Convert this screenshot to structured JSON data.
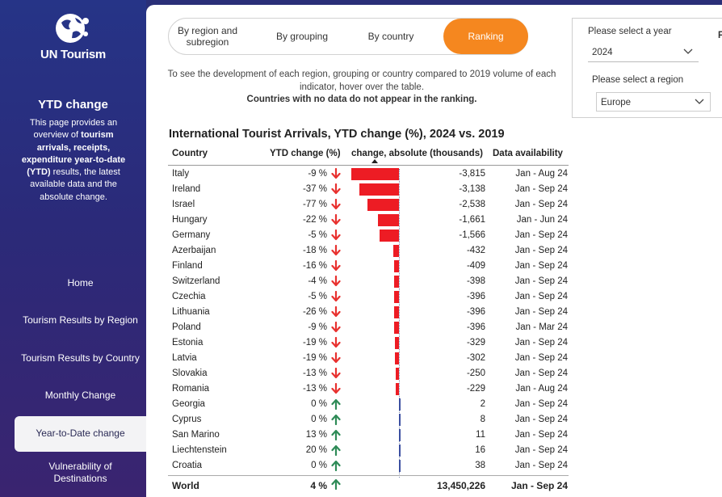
{
  "sidebar": {
    "brand": "UN Tourism",
    "title": "YTD change",
    "desc_parts": [
      {
        "t": "This page provides an overview of ",
        "b": false
      },
      {
        "t": "tourism arrivals, receipts, expenditure year-to-date (YTD)",
        "b": true
      },
      {
        "t": " results, the latest available data and the absolute change.",
        "b": false
      }
    ],
    "nav": [
      {
        "label": "Home",
        "active": false
      },
      {
        "label": "Tourism Results by Region",
        "active": false
      },
      {
        "label": "Tourism Results by Country",
        "active": false
      },
      {
        "label": "Monthly Change",
        "active": false
      },
      {
        "label": "Year-to-Date change",
        "active": true
      },
      {
        "label": "Vulnerability of Destinations",
        "active": false
      }
    ]
  },
  "tabs": [
    {
      "label": "By region and subregion",
      "active": false
    },
    {
      "label": "By grouping",
      "active": false
    },
    {
      "label": "By country",
      "active": false
    },
    {
      "label": "Ranking",
      "active": true
    }
  ],
  "instructions": {
    "line": "To see the development of each region, grouping or country compared to 2019 volume of each indicator, hover over the table.",
    "strong": "Countries with no data do not appear in the ranking."
  },
  "filters": {
    "year_label": "Please select a year",
    "year_value": "2024",
    "region_label": "Please select a region",
    "region_value": "Europe",
    "cut_label": "F"
  },
  "table": {
    "title": "International Tourist Arrivals, YTD change (%), 2024 vs. 2019",
    "headers": {
      "country": "Country",
      "ytd": "YTD change (%)",
      "abs": "change, absolute (thousands)",
      "avail": "Data availability"
    },
    "bar_scale_max": 3815,
    "rows": [
      {
        "country": "Italy",
        "ytd": "-9 %",
        "dir": "down",
        "abs_value": -3815,
        "abs": "-3,815",
        "avail": "Jan - Aug 24"
      },
      {
        "country": "Ireland",
        "ytd": "-37 %",
        "dir": "down",
        "abs_value": -3138,
        "abs": "-3,138",
        "avail": "Jan - Sep 24"
      },
      {
        "country": "Israel",
        "ytd": "-77 %",
        "dir": "down",
        "abs_value": -2538,
        "abs": "-2,538",
        "avail": "Jan - Sep 24"
      },
      {
        "country": "Hungary",
        "ytd": "-22 %",
        "dir": "down",
        "abs_value": -1661,
        "abs": "-1,661",
        "avail": "Jan - Jun 24"
      },
      {
        "country": "Germany",
        "ytd": "-5 %",
        "dir": "down",
        "abs_value": -1566,
        "abs": "-1,566",
        "avail": "Jan - Sep 24"
      },
      {
        "country": "Azerbaijan",
        "ytd": "-18 %",
        "dir": "down",
        "abs_value": -432,
        "abs": "-432",
        "avail": "Jan - Sep 24"
      },
      {
        "country": "Finland",
        "ytd": "-16 %",
        "dir": "down",
        "abs_value": -409,
        "abs": "-409",
        "avail": "Jan - Sep 24"
      },
      {
        "country": "Switzerland",
        "ytd": "-4 %",
        "dir": "down",
        "abs_value": -398,
        "abs": "-398",
        "avail": "Jan - Sep 24"
      },
      {
        "country": "Czechia",
        "ytd": "-5 %",
        "dir": "down",
        "abs_value": -396,
        "abs": "-396",
        "avail": "Jan - Sep 24"
      },
      {
        "country": "Lithuania",
        "ytd": "-26 %",
        "dir": "down",
        "abs_value": -396,
        "abs": "-396",
        "avail": "Jan - Sep 24"
      },
      {
        "country": "Poland",
        "ytd": "-9 %",
        "dir": "down",
        "abs_value": -396,
        "abs": "-396",
        "avail": "Jan - Mar 24"
      },
      {
        "country": "Estonia",
        "ytd": "-19 %",
        "dir": "down",
        "abs_value": -329,
        "abs": "-329",
        "avail": "Jan - Sep 24"
      },
      {
        "country": "Latvia",
        "ytd": "-19 %",
        "dir": "down",
        "abs_value": -302,
        "abs": "-302",
        "avail": "Jan - Sep 24"
      },
      {
        "country": "Slovakia",
        "ytd": "-13 %",
        "dir": "down",
        "abs_value": -250,
        "abs": "-250",
        "avail": "Jan - Sep 24"
      },
      {
        "country": "Romania",
        "ytd": "-13 %",
        "dir": "down",
        "abs_value": -229,
        "abs": "-229",
        "avail": "Jan - Aug 24"
      },
      {
        "country": "Georgia",
        "ytd": "0 %",
        "dir": "up",
        "abs_value": 2,
        "abs": "2",
        "avail": "Jan - Sep 24"
      },
      {
        "country": "Cyprus",
        "ytd": "0 %",
        "dir": "up",
        "abs_value": 8,
        "abs": "8",
        "avail": "Jan - Sep 24"
      },
      {
        "country": "San Marino",
        "ytd": "13 %",
        "dir": "up",
        "abs_value": 11,
        "abs": "11",
        "avail": "Jan - Sep 24"
      },
      {
        "country": "Liechtenstein",
        "ytd": "20 %",
        "dir": "up",
        "abs_value": 16,
        "abs": "16",
        "avail": "Jan - Sep 24"
      },
      {
        "country": "Croatia",
        "ytd": "0 %",
        "dir": "up",
        "abs_value": 38,
        "abs": "38",
        "avail": "Jan - Sep 24"
      }
    ],
    "total": {
      "country": "World",
      "ytd": "4 %",
      "dir": "up",
      "abs": "13,450,226",
      "avail": "Jan - Sep 24"
    }
  },
  "colors": {
    "accent": "#f5871f",
    "down": "#e8312f",
    "up": "#2e8b57",
    "bar_negative": "#ed1c24",
    "bar_positive": "#3b4fa0"
  }
}
